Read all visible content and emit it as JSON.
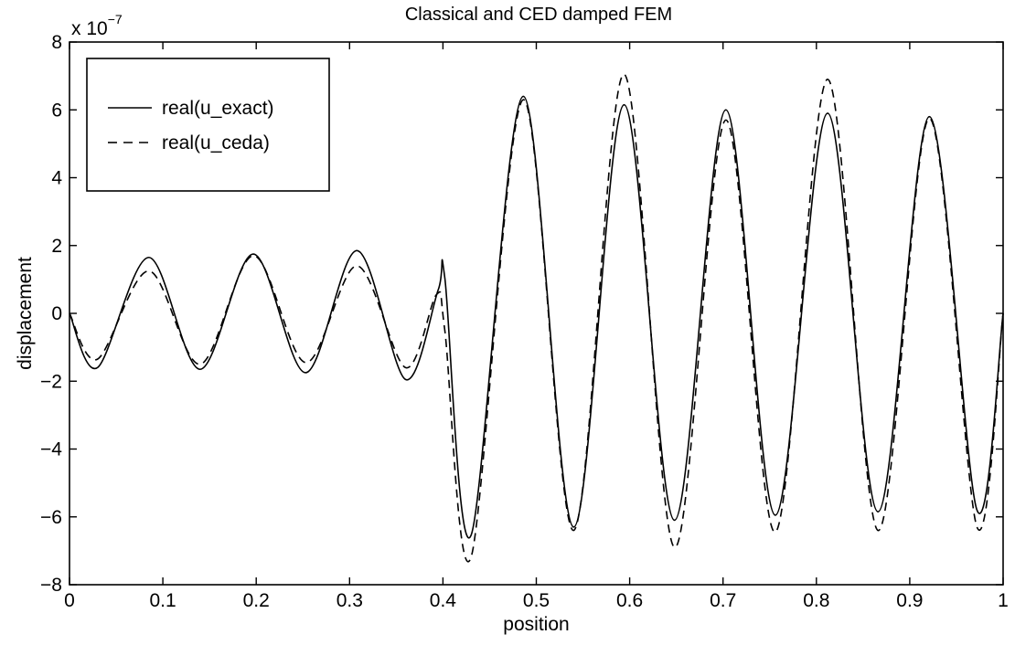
{
  "chart_data": {
    "type": "line",
    "title": "Classical and CED damped FEM",
    "xlabel": "position",
    "ylabel": "displacement",
    "y_exponent_base": "x 10",
    "y_exponent_power": "−7",
    "xlim": [
      0,
      1
    ],
    "ylim": [
      -8,
      8
    ],
    "xticks": [
      0,
      0.1,
      0.2,
      0.3,
      0.4,
      0.5,
      0.6,
      0.7,
      0.8,
      0.9,
      1
    ],
    "xtick_labels": [
      "0",
      "0.1",
      "0.2",
      "0.3",
      "0.4",
      "0.5",
      "0.6",
      "0.7",
      "0.8",
      "0.9",
      "1"
    ],
    "yticks": [
      -8,
      -6,
      -4,
      -2,
      0,
      2,
      4,
      6,
      8
    ],
    "ytick_labels": [
      "−8",
      "−6",
      "−4",
      "−2",
      "0",
      "2",
      "4",
      "6",
      "8"
    ],
    "grid": false,
    "legend_position": "top-left",
    "series": [
      {
        "name": "real(u_exact)",
        "style": "solid",
        "color": "#000000",
        "x": [
          0,
          0.03,
          0.085,
          0.14,
          0.197,
          0.253,
          0.308,
          0.36,
          0.395,
          0.402,
          0.43,
          0.486,
          0.54,
          0.594,
          0.648,
          0.703,
          0.756,
          0.812,
          0.866,
          0.921,
          0.972,
          1.0
        ],
        "y": [
          0,
          -1.6,
          1.65,
          -1.65,
          1.75,
          -1.75,
          1.85,
          -1.95,
          0.7,
          1.05,
          -6.55,
          6.4,
          -6.3,
          6.15,
          -6.1,
          6.0,
          -5.95,
          5.9,
          -5.85,
          5.8,
          -5.8,
          0
        ]
      },
      {
        "name": "real(u_ceda)",
        "style": "dashed",
        "color": "#000000",
        "x": [
          0,
          0.03,
          0.085,
          0.14,
          0.197,
          0.253,
          0.308,
          0.36,
          0.393,
          0.402,
          0.43,
          0.486,
          0.54,
          0.594,
          0.648,
          0.703,
          0.756,
          0.812,
          0.866,
          0.921,
          0.972,
          1.0
        ],
        "y": [
          0,
          -1.35,
          1.25,
          -1.5,
          1.7,
          -1.45,
          1.4,
          -1.6,
          0.55,
          -0.5,
          -7.2,
          6.3,
          -6.4,
          7.05,
          -6.9,
          5.7,
          -6.45,
          6.9,
          -6.4,
          5.75,
          -6.3,
          0
        ]
      }
    ]
  }
}
